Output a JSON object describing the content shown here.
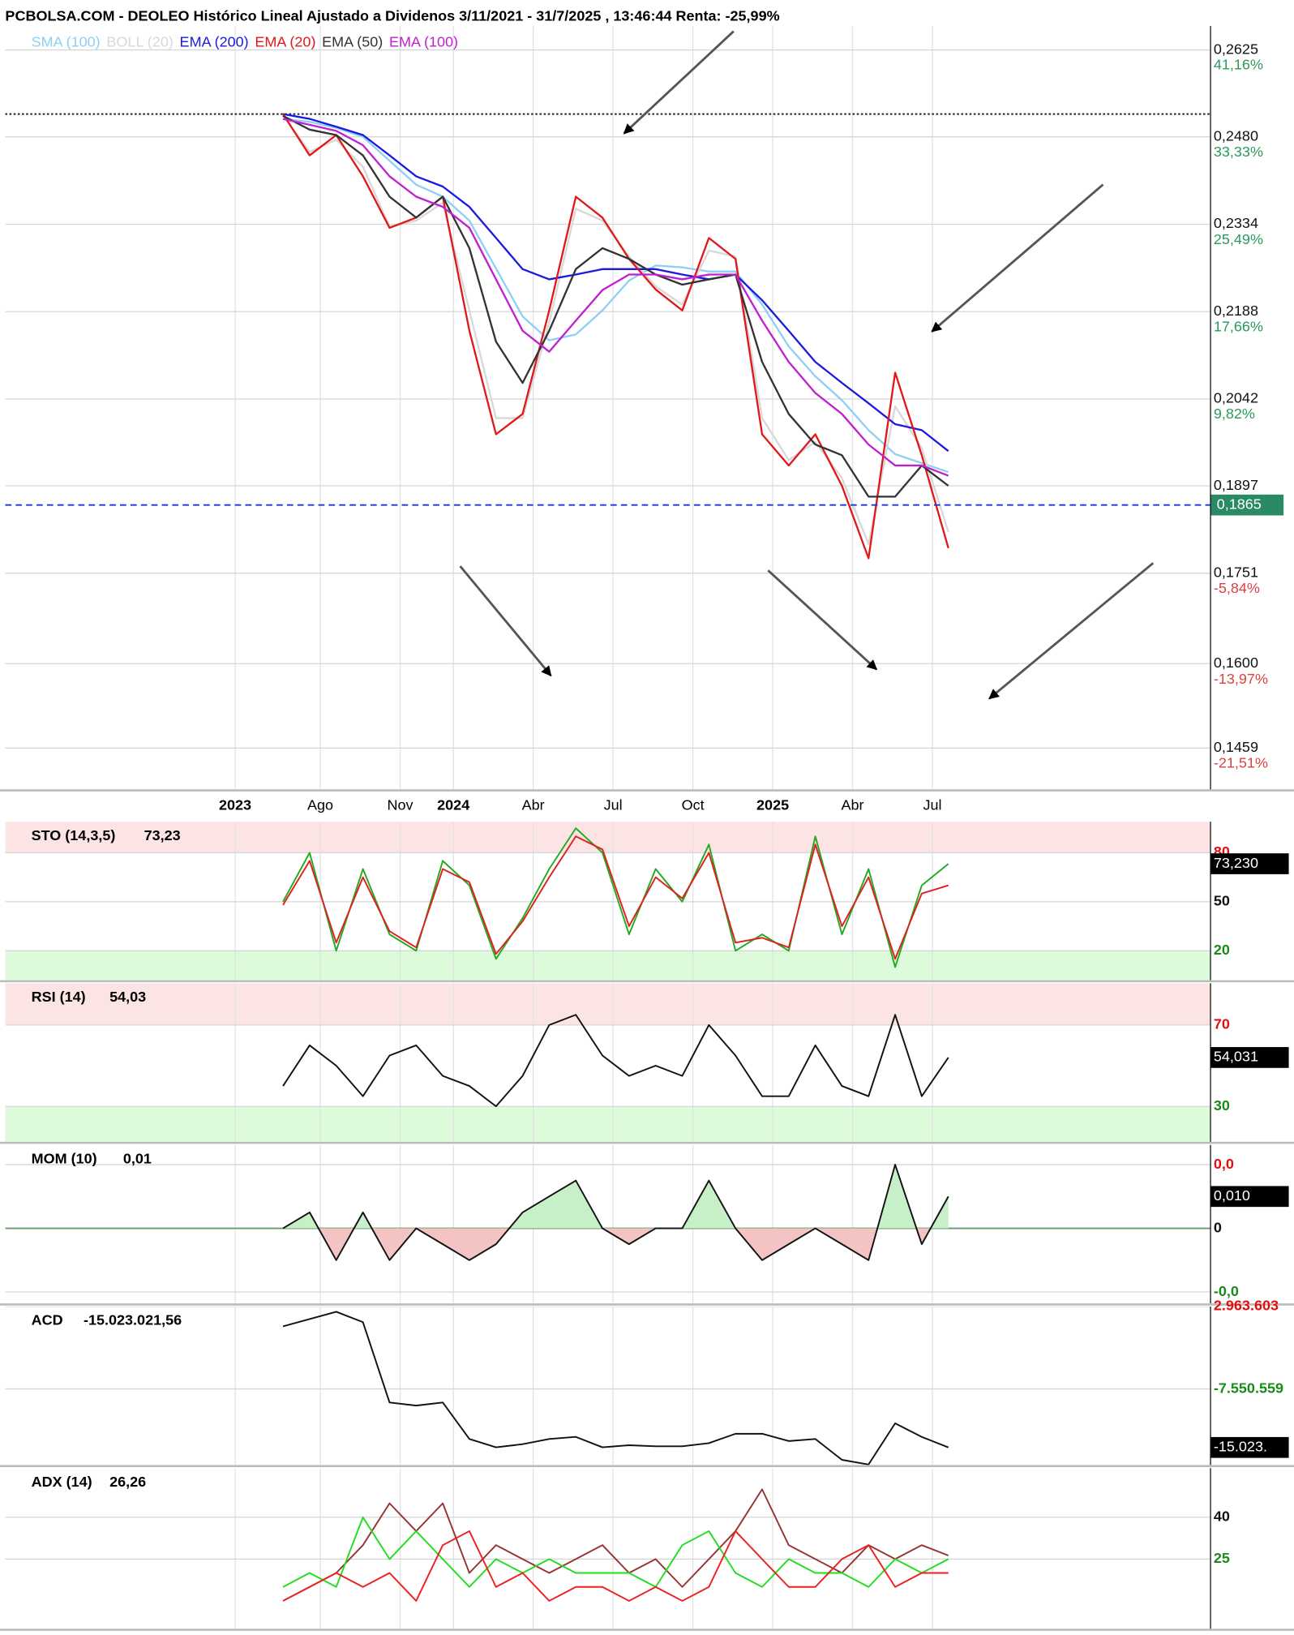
{
  "chart_data": [
    {
      "type": "line",
      "title": "PCBOLSA.COM - DEOLEO Histórico Lineal Ajustado a Dividenos 3/11/2021 - 31/7/2025 , 13:46:44 Renta: -25,99%",
      "x": [
        5.6,
        6.6,
        7.6,
        8.6,
        9.6,
        10.6,
        11.6,
        12.6,
        13.6,
        14.6,
        15.6,
        16.6,
        17.6,
        18.6,
        19.6,
        20.6,
        21.6,
        22.6,
        23.6,
        24.6,
        25.6,
        26.6,
        27.6,
        28.6,
        29.6,
        30.6
      ],
      "xlim": [
        -4.84,
        40.45
      ],
      "xticks": [
        {
          "value": 3.8,
          "label": "2023"
        },
        {
          "value": 7,
          "label": "Ago"
        },
        {
          "value": 10,
          "label": "Nov"
        },
        {
          "value": 12,
          "label": "2024"
        },
        {
          "value": 15,
          "label": "Abr"
        },
        {
          "value": 18,
          "label": "Jul"
        },
        {
          "value": 21,
          "label": "Oct"
        },
        {
          "value": 24,
          "label": "2025"
        },
        {
          "value": 27,
          "label": "Abr"
        },
        {
          "value": 30,
          "label": "Jul"
        }
      ],
      "ylim": [
        0.139,
        0.2665
      ],
      "yticks": [
        {
          "value": 0.2625,
          "label": "0,2625"
        },
        {
          "value": 0.248,
          "label": "0,2480"
        },
        {
          "value": 0.2334,
          "label": "0,2334"
        },
        {
          "value": 0.2188,
          "label": "0,2188"
        },
        {
          "value": 0.2042,
          "label": "0,2042"
        },
        {
          "value": 0.1897,
          "label": "0,1897"
        },
        {
          "value": 0.1751,
          "label": "0,1751"
        },
        {
          "value": 0.16,
          "label": "0,1600"
        },
        {
          "value": 0.1459,
          "label": "0,1459"
        }
      ],
      "y2lim": [
        -25.22,
        43.31
      ],
      "y2ticks": [
        {
          "value": 41.16,
          "label": "41,16%"
        },
        {
          "value": 33.33,
          "label": "33,33%"
        },
        {
          "value": 25.49,
          "label": "25,49%"
        },
        {
          "value": 17.66,
          "label": "17,66%"
        },
        {
          "value": 9.82,
          "label": "9,82%"
        },
        {
          "value": -5.84,
          "label": "-5,84%"
        },
        {
          "value": -13.97,
          "label": "-13,97%"
        },
        {
          "value": -21.51,
          "label": "-21,51%"
        }
      ],
      "current_price": {
        "value": 0.1865,
        "label": "0,1865"
      },
      "reference_line": 0.2518,
      "grid": true,
      "series": [
        {
          "name": "SMA (100)",
          "color": "#8ecff5",
          "values": [
            0.251,
            0.2505,
            0.2495,
            0.248,
            0.244,
            0.24,
            0.238,
            0.234,
            0.226,
            0.218,
            0.214,
            0.215,
            0.219,
            0.224,
            0.2265,
            0.2262,
            0.2255,
            0.2255,
            0.22,
            0.213,
            0.208,
            0.204,
            0.199,
            0.195,
            0.1935,
            0.192
          ]
        },
        {
          "name": "BOLL (20)",
          "color": "#d8d8d8",
          "values": [
            0.2515,
            0.2455,
            0.2475,
            0.243,
            0.233,
            0.234,
            0.237,
            0.219,
            0.201,
            0.201,
            0.217,
            0.236,
            0.234,
            0.228,
            0.223,
            0.22,
            0.229,
            0.228,
            0.201,
            0.194,
            0.197,
            0.191,
            0.18,
            0.203,
            0.196,
            0.182
          ]
        },
        {
          "name": "EMA (200)",
          "color": "#1a1ae0",
          "values": [
            0.2518,
            0.251,
            0.2497,
            0.2483,
            0.2449,
            0.2414,
            0.2397,
            0.2363,
            0.2311,
            0.2259,
            0.2242,
            0.225,
            0.2259,
            0.2259,
            0.2259,
            0.225,
            0.2242,
            0.225,
            0.2207,
            0.2156,
            0.2104,
            0.2069,
            0.2035,
            0.2,
            0.199,
            0.1955
          ]
        },
        {
          "name": "EMA (20)",
          "color": "#e01818",
          "values": [
            0.2518,
            0.2449,
            0.2483,
            0.2414,
            0.2328,
            0.2345,
            0.238,
            0.2156,
            0.1983,
            0.2017,
            0.219,
            0.238,
            0.2345,
            0.2276,
            0.2225,
            0.219,
            0.2311,
            0.2276,
            0.1983,
            0.1931,
            0.1983,
            0.1897,
            0.1776,
            0.2086,
            0.1948,
            0.1793
          ]
        },
        {
          "name": "EMA (50)",
          "color": "#333333",
          "values": [
            0.2515,
            0.2492,
            0.2483,
            0.2449,
            0.238,
            0.2345,
            0.238,
            0.2294,
            0.2138,
            0.2069,
            0.2156,
            0.2259,
            0.2294,
            0.2276,
            0.225,
            0.2233,
            0.2242,
            0.225,
            0.2104,
            0.2017,
            0.1966,
            0.1948,
            0.1879,
            0.1879,
            0.1931,
            0.1897
          ]
        },
        {
          "name": "EMA (100)",
          "color": "#c020d0",
          "values": [
            0.251,
            0.25,
            0.249,
            0.2466,
            0.2414,
            0.238,
            0.2363,
            0.2328,
            0.2242,
            0.2156,
            0.2121,
            0.2173,
            0.2224,
            0.225,
            0.225,
            0.2242,
            0.225,
            0.225,
            0.2173,
            0.2104,
            0.2052,
            0.2017,
            0.1966,
            0.1931,
            0.1931,
            0.1914
          ]
        }
      ]
    },
    {
      "type": "line",
      "indicator": "STO (14,3,5)",
      "current_label": "73,23",
      "current_box": "73,230",
      "x": [
        5.6,
        6.6,
        7.6,
        8.6,
        9.6,
        10.6,
        11.6,
        12.6,
        13.6,
        14.6,
        15.6,
        16.6,
        17.6,
        18.6,
        19.6,
        20.6,
        21.6,
        22.6,
        23.6,
        24.6,
        25.6,
        26.6,
        27.6,
        28.6,
        29.6,
        30.6
      ],
      "xlim": [
        -4.84,
        40.45
      ],
      "ylim": [
        2,
        99
      ],
      "yticks": [
        80,
        50,
        20
      ],
      "zones": true,
      "series": [
        {
          "color": "#22aa22",
          "values": [
            50,
            80,
            20,
            70,
            30,
            20,
            75,
            60,
            15,
            40,
            70,
            95,
            80,
            30,
            70,
            50,
            85,
            20,
            30,
            20,
            90,
            30,
            70,
            10,
            60,
            73.23
          ]
        },
        {
          "color": "#e02020",
          "values": [
            48,
            75,
            25,
            65,
            32,
            22,
            70,
            62,
            18,
            38,
            65,
            90,
            82,
            35,
            65,
            52,
            80,
            25,
            28,
            22,
            85,
            35,
            65,
            15,
            55,
            60
          ]
        }
      ]
    },
    {
      "type": "line",
      "indicator": "RSI (14)",
      "current_label": "54,03",
      "current_box": "54,031",
      "x": [
        5.6,
        6.6,
        7.6,
        8.6,
        9.6,
        10.6,
        11.6,
        12.6,
        13.6,
        14.6,
        15.6,
        16.6,
        17.6,
        18.6,
        19.6,
        20.6,
        21.6,
        22.6,
        23.6,
        24.6,
        25.6,
        26.6,
        27.6,
        28.6,
        29.6,
        30.6
      ],
      "xlim": [
        -4.84,
        40.45
      ],
      "ylim": [
        12.6,
        90.5
      ],
      "yticks": [
        70,
        30
      ],
      "zones": true,
      "series": [
        {
          "color": "#111111",
          "values": [
            40,
            60,
            50,
            35,
            55,
            60,
            45,
            40,
            30,
            45,
            70,
            75,
            55,
            45,
            50,
            45,
            70,
            55,
            35,
            35,
            60,
            40,
            35,
            75,
            35,
            54.03
          ]
        }
      ]
    },
    {
      "type": "line",
      "indicator": "MOM (10)",
      "current_label": "0,01",
      "current_box": "0,010",
      "x": [
        5.6,
        6.6,
        7.6,
        8.6,
        9.6,
        10.6,
        11.6,
        12.6,
        13.6,
        14.6,
        15.6,
        16.6,
        17.6,
        18.6,
        19.6,
        20.6,
        21.6,
        22.6,
        23.6,
        24.6,
        25.6,
        26.6,
        27.6,
        28.6,
        29.6,
        30.6
      ],
      "xlim": [
        -4.84,
        40.45
      ],
      "ylim": [
        -0.0236,
        0.0262
      ],
      "yticks": [
        {
          "value": 0.02,
          "label": "0,0"
        },
        0,
        {
          "value": -0.02,
          "label": "-0,0"
        }
      ],
      "fill_zero": true,
      "series": [
        {
          "color": "#111111",
          "values": [
            0,
            0.005,
            -0.01,
            0.005,
            -0.01,
            0,
            -0.005,
            -0.01,
            -0.005,
            0.005,
            0.01,
            0.015,
            0,
            -0.005,
            0,
            0,
            0.015,
            0,
            -0.01,
            -0.005,
            0,
            -0.005,
            -0.01,
            0.02,
            -0.005,
            0.01
          ]
        }
      ]
    },
    {
      "type": "line",
      "indicator": "ACD",
      "current_label": "-15.023.021,56",
      "current_box": "-15.023.",
      "x": [
        5.6,
        6.6,
        7.6,
        8.6,
        9.6,
        10.6,
        11.6,
        12.6,
        13.6,
        14.6,
        15.6,
        16.6,
        17.6,
        18.6,
        19.6,
        20.6,
        21.6,
        22.6,
        23.6,
        24.6,
        25.6,
        26.6,
        27.6,
        28.6,
        29.6,
        30.6
      ],
      "xlim": [
        -4.84,
        40.45
      ],
      "ylim": [
        -17266000,
        2963603
      ],
      "yticks": [
        {
          "value": 2963603,
          "label": "2.963.603"
        },
        {
          "value": -7550559,
          "label": "-7.550.559"
        }
      ],
      "series": [
        {
          "color": "#111111",
          "values": [
            434000,
            1360000,
            2300000,
            970000,
            -9280000,
            -9680000,
            -9280000,
            -13940000,
            -15000000,
            -14600000,
            -13940000,
            -13670000,
            -15000000,
            -14740000,
            -14870000,
            -14870000,
            -14470000,
            -13270000,
            -13270000,
            -14200000,
            -13940000,
            -16600000,
            -17200000,
            -11940000,
            -13670000,
            -15023021.56
          ]
        }
      ]
    },
    {
      "type": "line",
      "indicator": "ADX (14)",
      "current_label": "26,26",
      "x": [
        5.6,
        6.6,
        7.6,
        8.6,
        9.6,
        10.6,
        11.6,
        12.6,
        13.6,
        14.6,
        15.6,
        16.6,
        17.6,
        18.6,
        19.6,
        20.6,
        21.6,
        22.6,
        23.6,
        24.6,
        25.6,
        26.6,
        27.6,
        28.6,
        29.6,
        30.6
      ],
      "xlim": [
        -4.84,
        40.45
      ],
      "ylim": [
        0,
        57.6
      ],
      "yticks": [
        40,
        25
      ],
      "series": [
        {
          "color": "#993333",
          "values": [
            10,
            15,
            20,
            30,
            45,
            35,
            45,
            20,
            30,
            25,
            20,
            25,
            30,
            20,
            25,
            15,
            25,
            35,
            50,
            30,
            25,
            20,
            30,
            25,
            30,
            26.26
          ]
        },
        {
          "color": "#22dd22",
          "values": [
            15,
            20,
            15,
            40,
            25,
            35,
            25,
            15,
            25,
            20,
            25,
            20,
            20,
            20,
            15,
            30,
            35,
            20,
            15,
            25,
            20,
            20,
            15,
            25,
            20,
            25
          ]
        },
        {
          "color": "#ee2020",
          "values": [
            10,
            15,
            20,
            15,
            20,
            10,
            30,
            35,
            15,
            20,
            10,
            15,
            15,
            10,
            15,
            10,
            15,
            35,
            25,
            15,
            15,
            25,
            30,
            15,
            20,
            20
          ]
        }
      ]
    }
  ]
}
